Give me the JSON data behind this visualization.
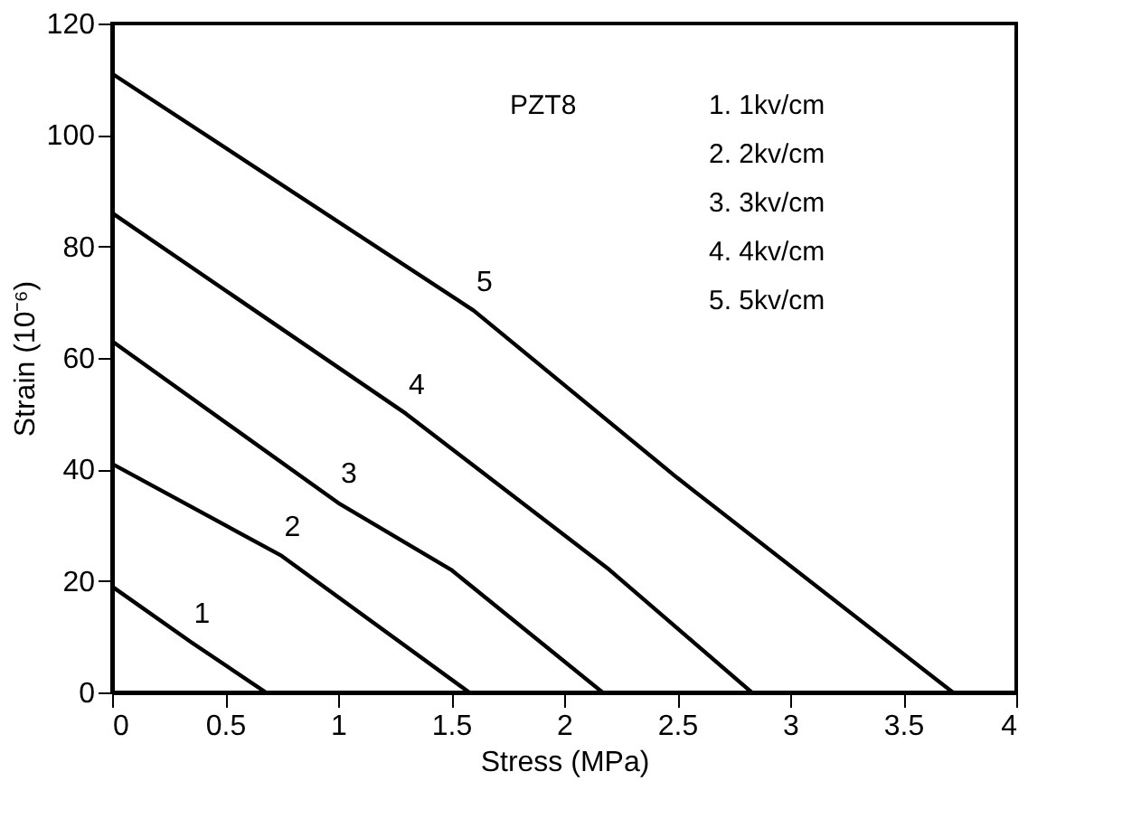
{
  "chart_data": {
    "type": "line",
    "xlabel": "Stress (MPa)",
    "ylabel": "Strain (10⁻⁶)",
    "xlim": [
      0,
      4
    ],
    "xticks": [
      0,
      0.5,
      1,
      1.5,
      2,
      2.5,
      3,
      3.5,
      4
    ],
    "ylim": [
      0,
      120
    ],
    "yticks": [
      0,
      20,
      40,
      60,
      80,
      100,
      120
    ],
    "grid": false,
    "legend": false,
    "marker": "none",
    "line_style": "solid",
    "series": [
      {
        "name": "1",
        "color": "#000000",
        "x": [
          0,
          0.35,
          0.68
        ],
        "values": [
          19,
          9,
          0
        ]
      },
      {
        "name": "2",
        "color": "#000000",
        "x": [
          0,
          0.75,
          1.58
        ],
        "values": [
          41,
          24.5,
          0
        ]
      },
      {
        "name": "3",
        "color": "#000000",
        "x": [
          0,
          1,
          1.5,
          2.17
        ],
        "values": [
          63,
          34,
          22,
          0
        ]
      },
      {
        "name": "4",
        "color": "#000000",
        "x": [
          0,
          1.3,
          2.2,
          2.83
        ],
        "values": [
          86,
          50,
          22,
          0
        ]
      },
      {
        "name": "5",
        "color": "#000000",
        "x": [
          0,
          1.6,
          2.5,
          3.72
        ],
        "values": [
          111,
          68.5,
          38.5,
          0
        ]
      }
    ],
    "annotations": [
      "PZT8",
      "1. 1kv/cm",
      "2. 2kv/cm",
      "3. 3kv/cm",
      "4. 4kv/cm",
      "5. 5kv/cm"
    ]
  }
}
